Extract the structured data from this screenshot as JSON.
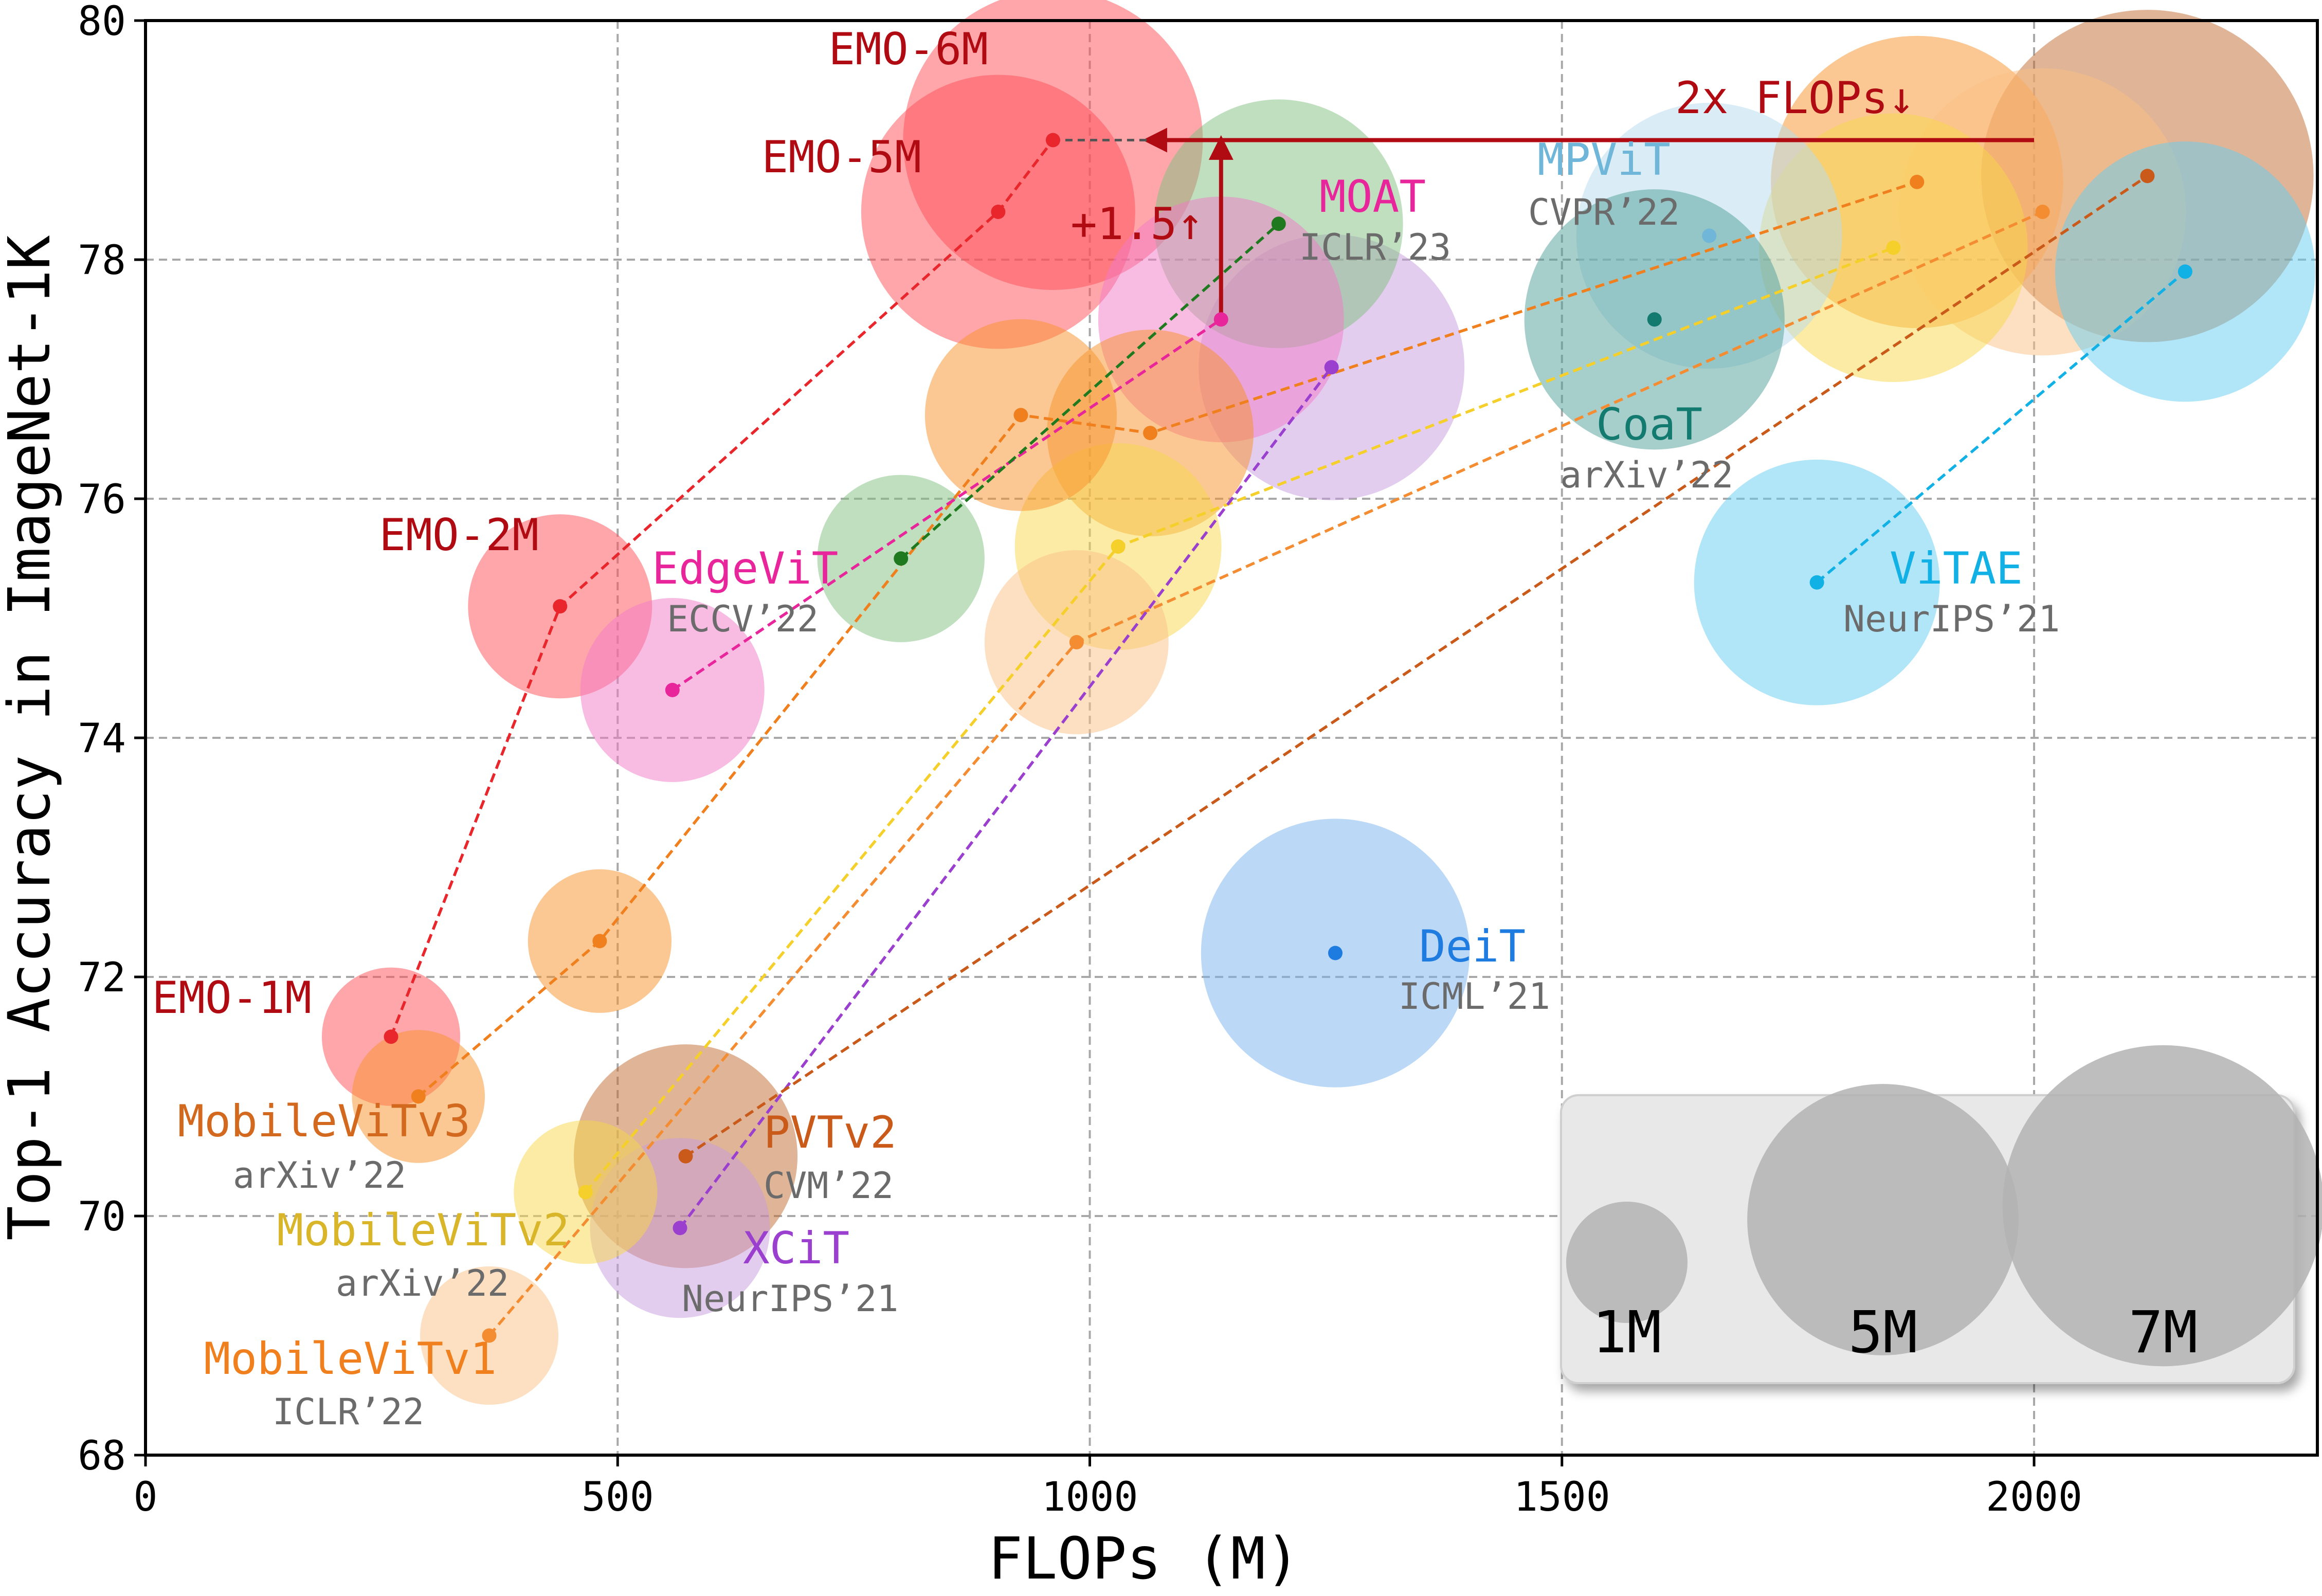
{
  "chart_data": {
    "type": "scatter",
    "xlabel": "FLOPs (M)",
    "ylabel": "Top-1 Accuracy in ImageNet-1K",
    "xlim": [
      0,
      2300
    ],
    "ylim": [
      68,
      80
    ],
    "xticks": [
      0,
      500,
      1000,
      1500,
      2000
    ],
    "yticks": [
      68,
      70,
      72,
      74,
      76,
      78,
      80
    ],
    "grid": true,
    "size_legend": {
      "placement": "bottom-right",
      "items": [
        {
          "label": "1M",
          "params": 1
        },
        {
          "label": "5M",
          "params": 5
        },
        {
          "label": "7M",
          "params": 7
        }
      ]
    },
    "series": [
      {
        "name": "EMO",
        "color": "#e8262c",
        "bubble_color": "#ff4d55",
        "label_color": "#b00b12",
        "points": [
          {
            "x": 260,
            "y": 71.5,
            "params": 1.3,
            "label": "EMO-1M"
          },
          {
            "x": 439,
            "y": 75.1,
            "params": 2.3,
            "label": "EMO-2M"
          },
          {
            "x": 903,
            "y": 78.4,
            "params": 5.1,
            "label": "EMO-5M"
          },
          {
            "x": 961,
            "y": 79.0,
            "params": 6.1,
            "label": "EMO-6M"
          }
        ]
      },
      {
        "name": "MobileViTv3",
        "venue": "arXiv’22",
        "color": "#f07f1e",
        "bubble_color": "#f7922a",
        "label_color": "#d2691e",
        "points": [
          {
            "x": 289,
            "y": 71.0,
            "params": 1.2
          },
          {
            "x": 481,
            "y": 72.3,
            "params": 1.4
          },
          {
            "x": 927,
            "y": 76.7,
            "params": 2.5
          },
          {
            "x": 1064,
            "y": 76.55,
            "params": 2.9
          },
          {
            "x": 1876,
            "y": 78.65,
            "params": 5.8
          }
        ]
      },
      {
        "name": "MobileViTv2",
        "venue": "arXiv’22",
        "color": "#f5cf2a",
        "bubble_color": "#f7d84a",
        "label_color": "#d9b52a",
        "points": [
          {
            "x": 466,
            "y": 70.2,
            "params": 1.4
          },
          {
            "x": 1030,
            "y": 75.6,
            "params": 2.9
          },
          {
            "x": 1851,
            "y": 78.1,
            "params": 4.9
          }
        ]
      },
      {
        "name": "MobileViTv1",
        "venue": "ICLR’22",
        "color": "#f48c32",
        "bubble_color": "#fbbf85",
        "label_color": "#f07f1e",
        "points": [
          {
            "x": 364,
            "y": 69.0,
            "params": 1.3
          },
          {
            "x": 986,
            "y": 74.8,
            "params": 2.3
          },
          {
            "x": 2009,
            "y": 78.4,
            "params": 5.6
          }
        ]
      },
      {
        "name": "EdgeViT",
        "venue": "ECCV’22",
        "color": "#e8259a",
        "bubble_color": "#f27ac8",
        "label_color": "#e8259a",
        "points": [
          {
            "x": 558,
            "y": 74.4,
            "params": 2.3
          },
          {
            "x": 1139,
            "y": 77.5,
            "params": 4.1
          }
        ]
      },
      {
        "name": "MOAT",
        "venue": "ICLR’23",
        "color": "#1f7a1f",
        "bubble_color": "#7fbf7f",
        "label_color": "#e8259a",
        "points": [
          {
            "x": 800,
            "y": 75.5,
            "params": 1.9
          },
          {
            "x": 1200,
            "y": 78.3,
            "params": 4.2
          }
        ]
      },
      {
        "name": "XCiT",
        "venue": "NeurIPS’21",
        "color": "#9b3fcf",
        "bubble_color": "#c79be0",
        "label_color": "#9b3fcf",
        "points": [
          {
            "x": 566,
            "y": 69.9,
            "params": 2.2
          },
          {
            "x": 1256,
            "y": 77.1,
            "params": 4.8
          }
        ]
      },
      {
        "name": "PVTv2",
        "venue": "CVM’22",
        "color": "#c95a1a",
        "bubble_color": "#c06a30",
        "label_color": "#c95a1a",
        "points": [
          {
            "x": 572,
            "y": 70.5,
            "params": 3.4
          },
          {
            "x": 2120,
            "y": 78.7,
            "params": 7.5
          }
        ]
      },
      {
        "name": "MPViT",
        "venue": "CVPR’22",
        "color": "#6fb6d9",
        "bubble_color": "#b5dcee",
        "label_color": "#6fb6d9",
        "points": [
          {
            "x": 1656,
            "y": 78.2,
            "params": 4.8
          }
        ]
      },
      {
        "name": "CoaT",
        "venue": "arXiv’22",
        "color": "#137a70",
        "bubble_color": "#4e9e97",
        "label_color": "#137a70",
        "points": [
          {
            "x": 1598,
            "y": 77.5,
            "params": 4.6
          }
        ]
      },
      {
        "name": "ViTAE",
        "venue": "NeurIPS’21",
        "color": "#11b0e5",
        "bubble_color": "#63cdf2",
        "label_color": "#11b0e5",
        "points": [
          {
            "x": 1770,
            "y": 75.3,
            "params": 4.1
          },
          {
            "x": 2160,
            "y": 77.9,
            "params": 4.6
          }
        ]
      },
      {
        "name": "DeiT",
        "venue": "ICML’21",
        "color": "#1e7be0",
        "bubble_color": "#7ab2f0",
        "label_color": "#1e7be0",
        "points": [
          {
            "x": 1260,
            "y": 72.2,
            "params": 4.9
          }
        ]
      }
    ],
    "annotations": [
      {
        "type": "arrow",
        "from": [
          1139,
          77.5
        ],
        "to": [
          1139,
          79.0
        ],
        "text": "+1.5↑",
        "color": "#b00b12"
      },
      {
        "type": "arrow",
        "from": [
          2000,
          79.0
        ],
        "to": [
          1061,
          79.0
        ],
        "text": "2x FLOPs↓",
        "color": "#b00b12"
      },
      {
        "type": "dashed-line",
        "from": [
          961,
          79.0
        ],
        "to": [
          1061,
          79.0
        ],
        "color": "#555555"
      }
    ]
  }
}
